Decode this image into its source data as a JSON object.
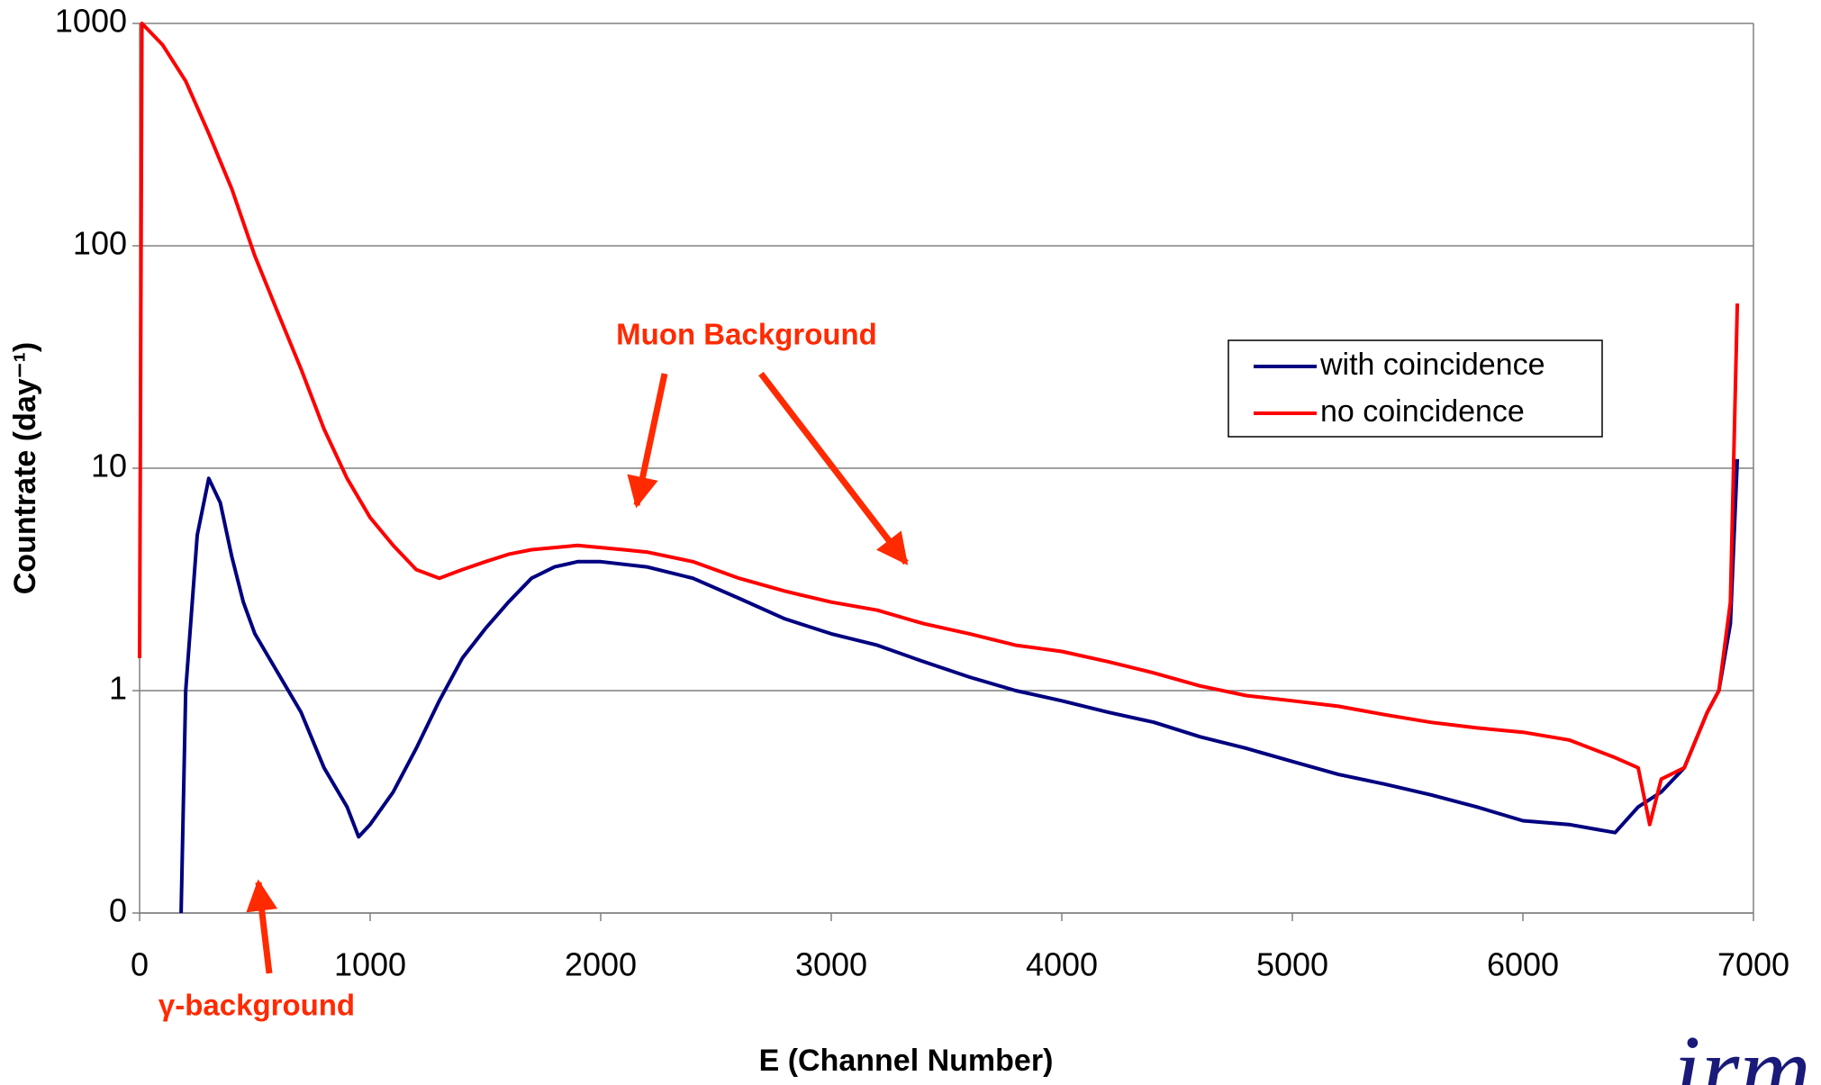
{
  "chart_data": {
    "type": "line",
    "x_label": "E (Channel Number)",
    "y_label": "Countrate (day⁻¹)",
    "log_y": true,
    "grid": true,
    "xlim": [
      0,
      7000
    ],
    "xticks": [
      0,
      1000,
      2000,
      3000,
      4000,
      5000,
      6000,
      7000
    ],
    "ylim": [
      0.1,
      1000
    ],
    "yticks": [
      {
        "value": 0.1,
        "label": "0"
      },
      1,
      10,
      100,
      1000
    ],
    "legend_position": "upper right",
    "annotations": [
      "Muon Background",
      "γ-background"
    ],
    "logo": "irm",
    "series": [
      {
        "name": "with coincidence",
        "color": "#000080",
        "x": [
          180,
          200,
          250,
          300,
          350,
          400,
          450,
          500,
          600,
          700,
          800,
          900,
          950,
          1000,
          1100,
          1200,
          1300,
          1400,
          1500,
          1600,
          1700,
          1800,
          1900,
          2000,
          2200,
          2400,
          2600,
          2800,
          3000,
          3200,
          3400,
          3600,
          3800,
          4000,
          4200,
          4400,
          4600,
          4800,
          5000,
          5200,
          5400,
          5600,
          5800,
          6000,
          6200,
          6400,
          6500,
          6600,
          6700,
          6800,
          6850,
          6900,
          6930
        ],
        "values": [
          0.1,
          1.0,
          5,
          9,
          7,
          4,
          2.5,
          1.8,
          1.2,
          0.8,
          0.45,
          0.3,
          0.22,
          0.25,
          0.35,
          0.55,
          0.9,
          1.4,
          1.9,
          2.5,
          3.2,
          3.6,
          3.8,
          3.8,
          3.6,
          3.2,
          2.6,
          2.1,
          1.8,
          1.6,
          1.35,
          1.15,
          1.0,
          0.9,
          0.8,
          0.72,
          0.62,
          0.55,
          0.48,
          0.42,
          0.38,
          0.34,
          0.3,
          0.26,
          0.25,
          0.23,
          0.3,
          0.35,
          0.45,
          0.8,
          1.0,
          2,
          11
        ]
      },
      {
        "name": "no coincidence",
        "color": "#ff0000",
        "x": [
          0,
          10,
          100,
          200,
          300,
          400,
          500,
          600,
          700,
          800,
          900,
          1000,
          1100,
          1200,
          1300,
          1400,
          1500,
          1600,
          1700,
          1800,
          1900,
          2000,
          2100,
          2200,
          2400,
          2600,
          2800,
          3000,
          3200,
          3400,
          3600,
          3800,
          4000,
          4200,
          4400,
          4600,
          4800,
          5000,
          5200,
          5400,
          5600,
          5800,
          6000,
          6200,
          6400,
          6500,
          6550,
          6600,
          6700,
          6800,
          6850,
          6900,
          6930
        ],
        "values": [
          1.4,
          1000,
          800,
          550,
          320,
          180,
          90,
          50,
          28,
          15,
          9,
          6,
          4.5,
          3.5,
          3.2,
          3.5,
          3.8,
          4.1,
          4.3,
          4.4,
          4.5,
          4.4,
          4.3,
          4.2,
          3.8,
          3.2,
          2.8,
          2.5,
          2.3,
          2.0,
          1.8,
          1.6,
          1.5,
          1.35,
          1.2,
          1.05,
          0.95,
          0.9,
          0.85,
          0.78,
          0.72,
          0.68,
          0.65,
          0.6,
          0.5,
          0.45,
          0.25,
          0.4,
          0.45,
          0.8,
          1.0,
          2.5,
          55
        ]
      }
    ]
  }
}
